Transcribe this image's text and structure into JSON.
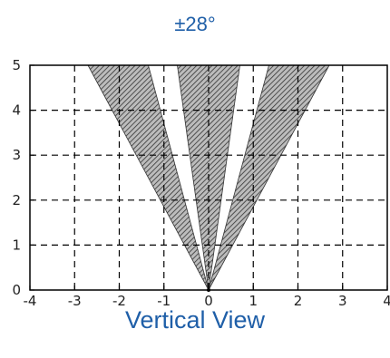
{
  "chart_data": {
    "type": "area",
    "title": "±28°",
    "caption": "Vertical View",
    "xlim": [
      -4,
      4
    ],
    "ylim": [
      0,
      5
    ],
    "x_ticks": [
      -4,
      -3,
      -2,
      -1,
      0,
      1,
      2,
      3,
      4
    ],
    "x_tick_labels": [
      "-4",
      "-3",
      "-2",
      "-1",
      "0",
      "1",
      "2",
      "3",
      "4"
    ],
    "y_ticks": [
      0,
      1,
      2,
      3,
      4,
      5
    ],
    "y_tick_labels": [
      "0",
      "1",
      "2",
      "3",
      "4",
      "5"
    ],
    "grid": true,
    "origin": [
      0,
      0
    ],
    "regions": [
      {
        "polygon": [
          [
            0,
            0
          ],
          [
            -2.7,
            5
          ],
          [
            -1.35,
            5
          ]
        ]
      },
      {
        "polygon": [
          [
            0,
            0
          ],
          [
            -0.7,
            5
          ],
          [
            0.7,
            5
          ]
        ]
      },
      {
        "polygon": [
          [
            0,
            0
          ],
          [
            1.35,
            5
          ],
          [
            2.7,
            5
          ]
        ]
      }
    ],
    "colors": {
      "region_fill": "#bcbcbc",
      "hatch": "#333333",
      "grid": "#000000",
      "axis": "#000000"
    }
  }
}
